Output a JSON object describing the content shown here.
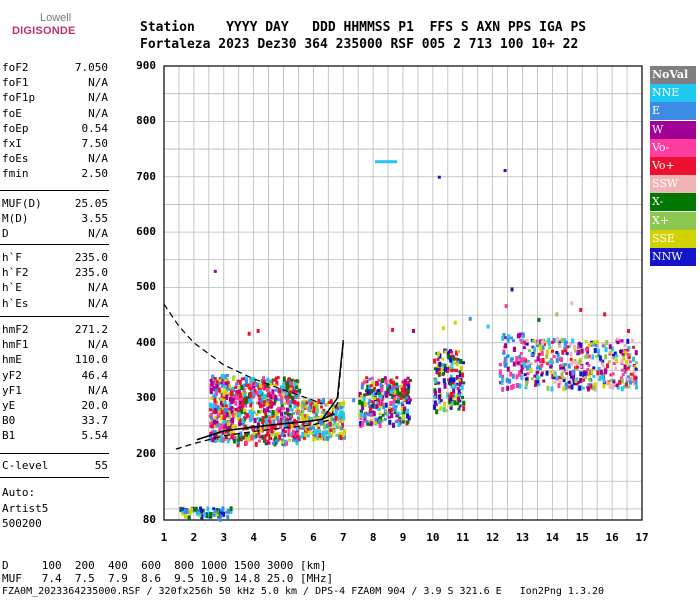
{
  "logo": {
    "line1": "Lowell",
    "line2": "DIGISONDE"
  },
  "header": {
    "row1": "Station    YYYY DAY   DDD HHMMSS P1  FFS S AXN PPS IGA PS",
    "row2": "Fortaleza 2023 Dez30 364 235000 RSF 005 2 713 100 10+ 22"
  },
  "params": {
    "group1": [
      {
        "name": "foF2",
        "value": "7.050"
      },
      {
        "name": "foF1",
        "value": "N/A"
      },
      {
        "name": "foF1p",
        "value": "N/A"
      },
      {
        "name": "foE",
        "value": "N/A"
      },
      {
        "name": "foEp",
        "value": "0.54"
      },
      {
        "name": "fxI",
        "value": "7.50"
      },
      {
        "name": "foEs",
        "value": "N/A"
      },
      {
        "name": "fmin",
        "value": "2.50"
      }
    ],
    "group2": [
      {
        "name": "MUF(D)",
        "value": "25.05"
      },
      {
        "name": "M(D)",
        "value": "3.55"
      },
      {
        "name": "D",
        "value": "N/A"
      }
    ],
    "group3": [
      {
        "name": "h`F",
        "value": "235.0"
      },
      {
        "name": "h`F2",
        "value": "235.0"
      },
      {
        "name": "h`E",
        "value": "N/A"
      },
      {
        "name": "h`Es",
        "value": "N/A"
      }
    ],
    "group4": [
      {
        "name": "hmF2",
        "value": "271.2"
      },
      {
        "name": "hmF1",
        "value": "N/A"
      },
      {
        "name": "hmE",
        "value": "110.0"
      },
      {
        "name": "yF2",
        "value": "46.4"
      },
      {
        "name": "yF1",
        "value": "N/A"
      },
      {
        "name": "yE",
        "value": "20.0"
      },
      {
        "name": "B0",
        "value": "33.7"
      },
      {
        "name": "B1",
        "value": "5.54"
      }
    ],
    "group5": [
      {
        "name": "C-level",
        "value": "55"
      }
    ],
    "auto": [
      "Auto:",
      "Artist5",
      "500200"
    ]
  },
  "legend": [
    {
      "label": "NoVal",
      "color": "#7f7f7f"
    },
    {
      "label": "NNE",
      "color": "#1ec8f0"
    },
    {
      "label": "E",
      "color": "#3c8ce6"
    },
    {
      "label": "W",
      "color": "#a00096"
    },
    {
      "label": "Vo-",
      "color": "#ff3ca0"
    },
    {
      "label": "Vo+",
      "color": "#ee1030"
    },
    {
      "label": "SSW",
      "color": "#f0b4b4"
    },
    {
      "label": "X-",
      "color": "#007800"
    },
    {
      "label": "X+",
      "color": "#8cc850"
    },
    {
      "label": "SSE",
      "color": "#d2d200"
    },
    {
      "label": "NNW",
      "color": "#1414c8"
    }
  ],
  "footer": {
    "row1": "D     100  200  400  600  800 1000 1500 3000 [km]",
    "row2": "MUF   7.4  7.5  7.9  8.6  9.5 10.9 14.8 25.0 [MHz]",
    "row3": "FZA0M_2023364235000.RSF / 320fx256h 50 kHz 5.0 km / DPS-4 FZA0M 904 / 3.9 S 321.6 E   Ion2Png 1.3.20"
  },
  "chart_data": {
    "type": "scatter",
    "xlim": [
      1,
      17
    ],
    "ylim": [
      80,
      900
    ],
    "xticks": [
      1,
      2,
      3,
      4,
      5,
      6,
      7,
      8,
      9,
      10,
      11,
      12,
      13,
      14,
      15,
      16,
      17
    ],
    "yticks": [
      80,
      200,
      300,
      400,
      500,
      600,
      700,
      800,
      900
    ],
    "grid": true,
    "echo_clusters": [
      {
        "x": [
          2.5,
          3.3
        ],
        "y": [
          225,
          345
        ]
      },
      {
        "x": [
          3.3,
          5.5
        ],
        "y": [
          220,
          340
        ]
      },
      {
        "x": [
          5.5,
          7.0
        ],
        "y": [
          230,
          300
        ]
      },
      {
        "x": [
          7.5,
          9.2
        ],
        "y": [
          255,
          340
        ]
      },
      {
        "x": [
          10.0,
          11.0
        ],
        "y": [
          280,
          390
        ]
      },
      {
        "x": [
          12.2,
          13.0
        ],
        "y": [
          320,
          420
        ]
      },
      {
        "x": [
          13.0,
          16.8
        ],
        "y": [
          320,
          410
        ]
      },
      {
        "x": [
          1.5,
          3.2
        ],
        "y": [
          85,
          105
        ]
      }
    ],
    "profile_curve": [
      {
        "x": 1.4,
        "y": 208
      },
      {
        "x": 2.0,
        "y": 218
      },
      {
        "x": 3.0,
        "y": 232
      },
      {
        "x": 4.0,
        "y": 240
      },
      {
        "x": 5.0,
        "y": 246
      },
      {
        "x": 6.0,
        "y": 252
      },
      {
        "x": 6.5,
        "y": 260
      },
      {
        "x": 6.8,
        "y": 290
      },
      {
        "x": 7.0,
        "y": 400
      }
    ],
    "trace_curve": [
      {
        "x": 2.1,
        "y": 225
      },
      {
        "x": 3.0,
        "y": 241
      },
      {
        "x": 4.0,
        "y": 248
      },
      {
        "x": 5.0,
        "y": 254
      },
      {
        "x": 5.8,
        "y": 258
      },
      {
        "x": 6.3,
        "y": 262
      },
      {
        "x": 6.7,
        "y": 272
      }
    ],
    "topside_curve": [
      {
        "x": 1.0,
        "y": 470
      },
      {
        "x": 1.5,
        "y": 430
      },
      {
        "x": 2.0,
        "y": 400
      },
      {
        "x": 3.0,
        "y": 360
      },
      {
        "x": 4.0,
        "y": 335
      },
      {
        "x": 5.0,
        "y": 315
      },
      {
        "x": 5.8,
        "y": 300
      },
      {
        "x": 6.3,
        "y": 290
      }
    ],
    "small_echoes": [
      {
        "x": 8.2,
        "y": 728,
        "color": "#1ec8f0"
      },
      {
        "x": 10.3,
        "y": 700,
        "color": "#1414c8"
      },
      {
        "x": 12.5,
        "y": 712,
        "color": "#1414c8"
      },
      {
        "x": 2.8,
        "y": 530,
        "color": "#a00096"
      }
    ]
  }
}
